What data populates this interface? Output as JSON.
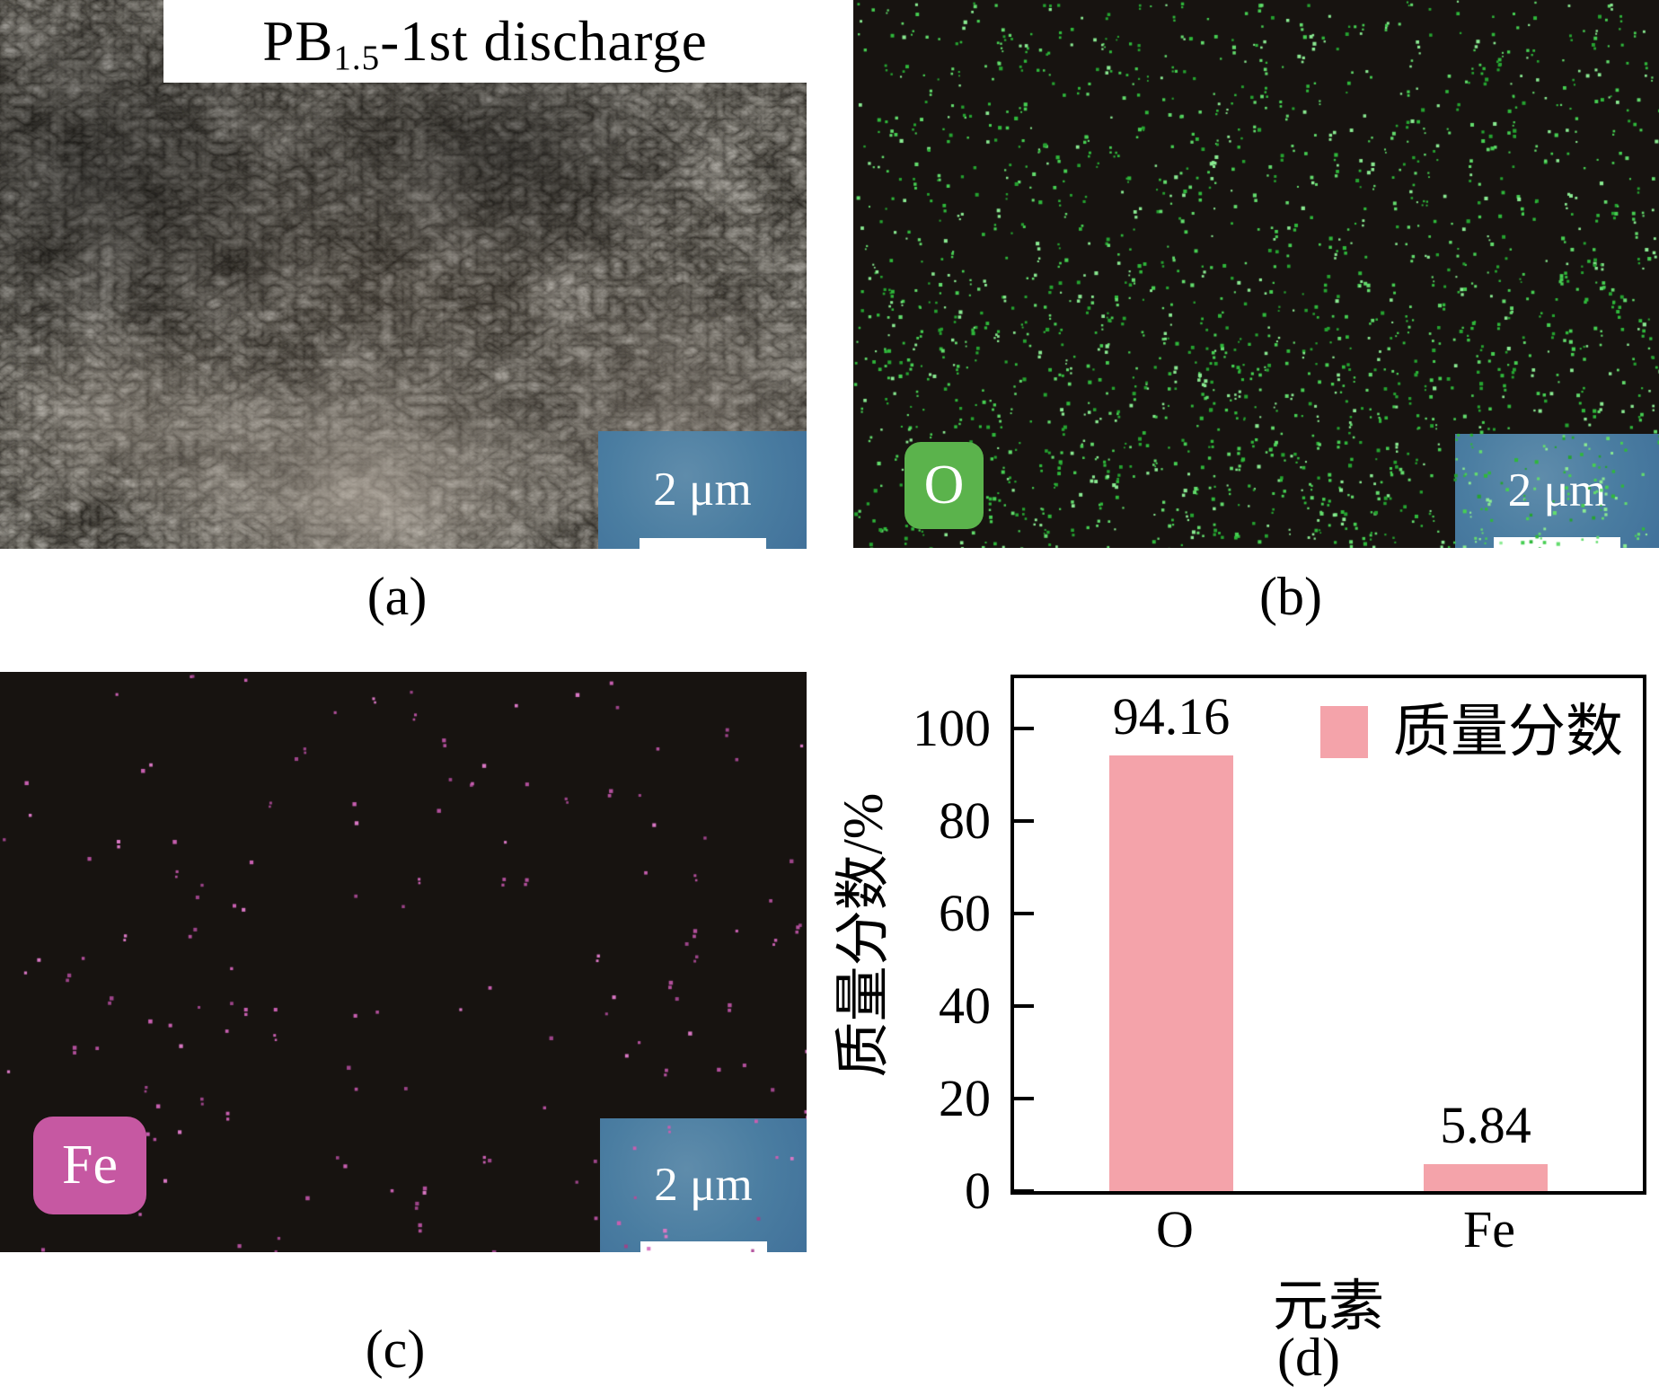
{
  "figure": {
    "panel_a": {
      "title": {
        "prefix": "PB",
        "subscript": "1.5",
        "suffix": "-1st discharge"
      },
      "scale_bar_text": "2 μm",
      "label": "(a)"
    },
    "panel_b": {
      "element_badge": "O",
      "scale_bar_text": "2 μm",
      "label": "(b)",
      "dots": {
        "count": 1750,
        "min_size": 2,
        "max_size": 4.2,
        "pair_probability": 0.18,
        "palette": [
          "#2fb83b",
          "#46cf52",
          "#63dc6d",
          "#8aeb92",
          "#25a330"
        ]
      }
    },
    "panel_c": {
      "element_badge": "Fe",
      "scale_bar_text": "2 μm",
      "label": "(c)",
      "dots": {
        "count": 150,
        "min_size": 3,
        "max_size": 4.6,
        "pair_probability": 0.25,
        "palette": [
          "#b14f9b",
          "#c75fb0",
          "#d977c4",
          "#9c4489"
        ]
      }
    },
    "panel_d": {
      "label": "(d)"
    }
  },
  "colors": {
    "scalebar_box": "#4a7da1",
    "o_badge": "#5bb34c",
    "fe_badge": "#c658a2",
    "bar_fill": "#f4a3aa",
    "map_background": "#171310",
    "frame": "#000000"
  },
  "chart_data": {
    "type": "bar",
    "title": "",
    "categories": [
      "O",
      "Fe"
    ],
    "values": [
      94.16,
      5.84
    ],
    "value_labels": [
      "94.16",
      "5.84"
    ],
    "series_name": "质量分数",
    "xlabel": "元素",
    "ylabel": "质量分数/%",
    "yticks": [
      0,
      20,
      40,
      60,
      80,
      100
    ],
    "ylim": [
      0,
      111
    ],
    "grid": false,
    "legend_position": "top-right-inside",
    "bar_color": "#f4a3aa"
  }
}
